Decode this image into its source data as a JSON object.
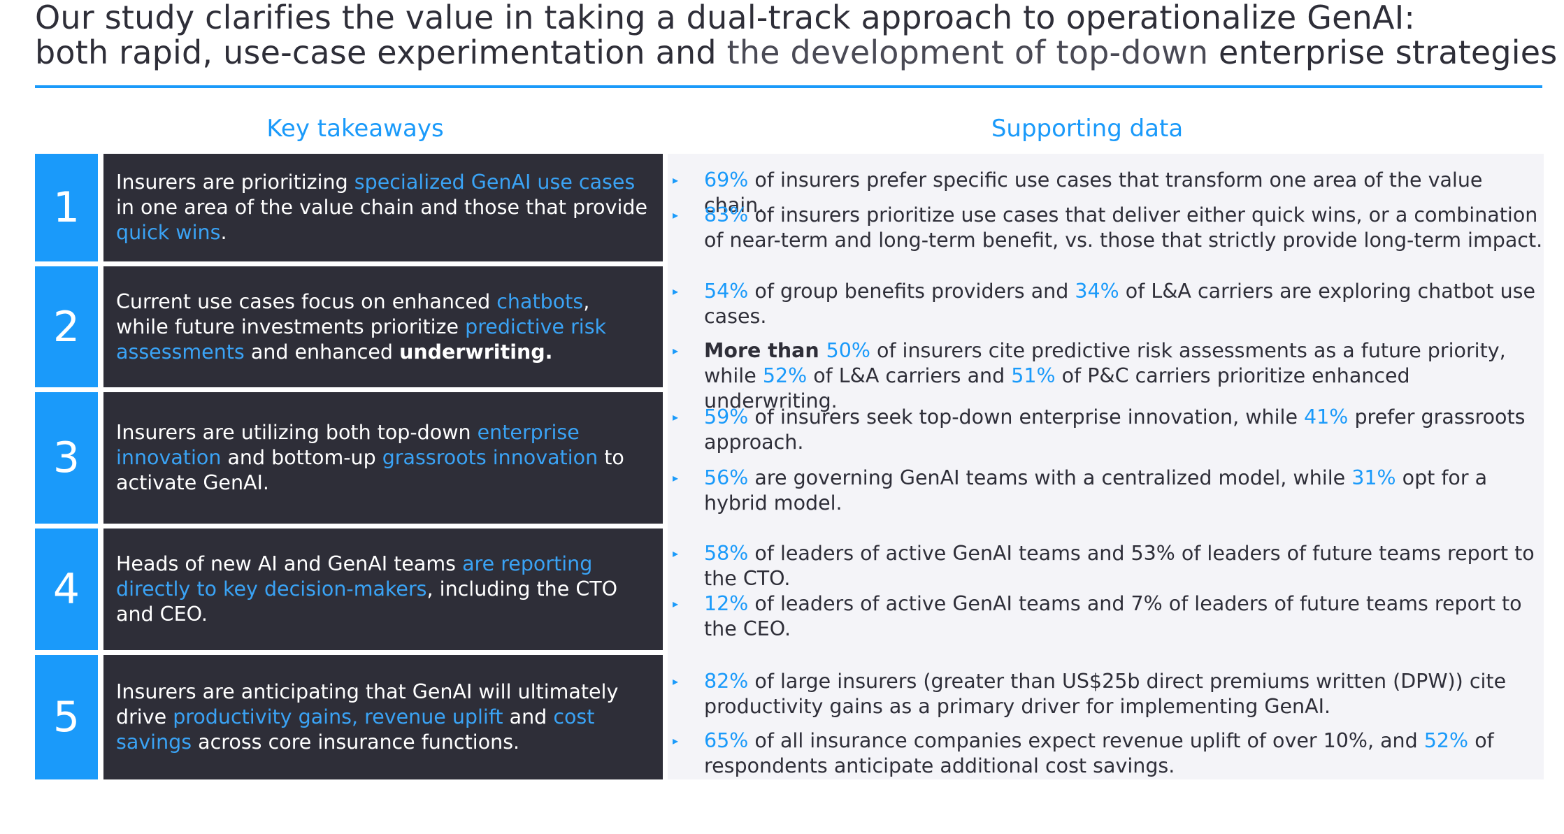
{
  "header": {
    "title_line1": "Our study clarifies the value in taking a dual-track approach to operationalize GenAI:",
    "title_line2_a": "both rapid, use-case experimentation and ",
    "title_line2_b": "the development of top-down",
    "title_line2_c": " enterprise strategies",
    "left_column": "Key takeaways",
    "right_column": "Supporting data"
  },
  "rows": [
    {
      "number": "1",
      "takeaway": [
        {
          "t": "Insurers are prioritizing "
        },
        {
          "t": "specialized GenAI use cases",
          "hl": true
        },
        {
          "t": " in one area of the value chain and those that provide "
        },
        {
          "t": "quick wins",
          "hl": true
        },
        {
          "t": "."
        }
      ],
      "data": [
        [
          {
            "t": "69%",
            "hl": true
          },
          {
            "t": " of insurers prefer specific use cases that transform one area of the value chain."
          }
        ],
        [
          {
            "t": "83%",
            "hl": true
          },
          {
            "t": " of insurers prioritize use cases that deliver either quick wins, or a combination of near-term and long-term benefit, vs. those that strictly provide long-term impact."
          }
        ]
      ]
    },
    {
      "number": "2",
      "takeaway": [
        {
          "t": "Current use cases focus on enhanced "
        },
        {
          "t": "chatbots",
          "hl": true
        },
        {
          "t": ", while future investments prioritize "
        },
        {
          "t": "predictive risk assessments",
          "hl": true
        },
        {
          "t": " and enhanced "
        },
        {
          "t": "underwriting.",
          "bold": true
        }
      ],
      "data": [
        [
          {
            "t": "54%",
            "hl": true
          },
          {
            "t": " of group benefits providers and "
          },
          {
            "t": "34%",
            "hl": true
          },
          {
            "t": " of L&A carriers are exploring chatbot use cases."
          }
        ],
        [
          {
            "t": "More than ",
            "bold": true
          },
          {
            "t": "50%",
            "hl": true
          },
          {
            "t": " of insurers cite predictive risk assessments as a future priority, while "
          },
          {
            "t": "52%",
            "hl": true
          },
          {
            "t": " of L&A carriers and "
          },
          {
            "t": "51%",
            "hl": true
          },
          {
            "t": " of P&C carriers prioritize enhanced underwriting."
          }
        ]
      ]
    },
    {
      "number": "3",
      "takeaway": [
        {
          "t": "Insurers are utilizing both top-down "
        },
        {
          "t": "enterprise innovation",
          "hl": true
        },
        {
          "t": " and bottom-up "
        },
        {
          "t": "grassroots innovation",
          "hl": true
        },
        {
          "t": " to activate GenAI."
        }
      ],
      "data": [
        [
          {
            "t": "59%",
            "hl": true
          },
          {
            "t": " of insurers seek top-down enterprise innovation, while "
          },
          {
            "t": "41%",
            "hl": true
          },
          {
            "t": " prefer grassroots approach."
          }
        ],
        [
          {
            "t": "56%",
            "hl": true
          },
          {
            "t": " are governing GenAI teams with a centralized model, while "
          },
          {
            "t": "31%",
            "hl": true
          },
          {
            "t": " opt for a hybrid model."
          }
        ]
      ]
    },
    {
      "number": "4",
      "takeaway": [
        {
          "t": "Heads of new AI and GenAI teams "
        },
        {
          "t": "are reporting directly to key decision-makers",
          "hl": true
        },
        {
          "t": ", including the CTO and CEO."
        }
      ],
      "data": [
        [
          {
            "t": "58%",
            "hl": true
          },
          {
            "t": " of leaders of active GenAI teams and 53% of leaders of future teams report to the CTO."
          }
        ],
        [
          {
            "t": "12%",
            "hl": true
          },
          {
            "t": " of leaders of active GenAI teams and 7% of leaders of future teams report to the CEO."
          }
        ]
      ]
    },
    {
      "number": "5",
      "takeaway": [
        {
          "t": "Insurers are anticipating that GenAI will ultimately drive "
        },
        {
          "t": "productivity gains, revenue uplift",
          "hl": true
        },
        {
          "t": " and "
        },
        {
          "t": "cost savings",
          "hl": true
        },
        {
          "t": " across core insurance functions."
        }
      ],
      "data": [
        [
          {
            "t": "82%",
            "hl": true
          },
          {
            "t": " of large insurers (greater than US$25b direct premiums written (DPW)) cite productivity gains as a primary driver for implementing GenAI."
          }
        ],
        [
          {
            "t": "65%",
            "hl": true
          },
          {
            "t": " of all insurance companies expect revenue uplift of over 10%, and "
          },
          {
            "t": "52%",
            "hl": true
          },
          {
            "t": " of respondents anticipate additional cost savings."
          }
        ]
      ]
    }
  ],
  "colors": {
    "accent_blue": "#1a9afa",
    "dark_panel": "#2e2e38",
    "light_panel": "#f4f4f8"
  }
}
